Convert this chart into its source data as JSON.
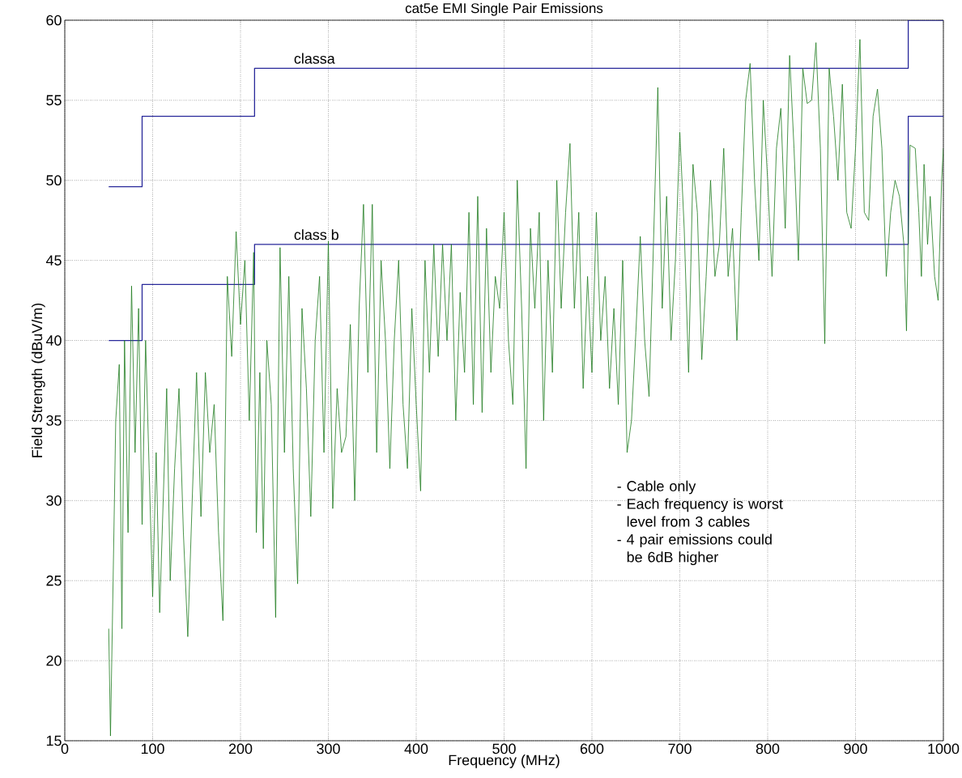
{
  "chart_data": {
    "type": "line",
    "title": "cat5e EMI Single Pair Emissions",
    "xlabel": "Frequency (MHz)",
    "ylabel": "Field Strength (dBuV/m)",
    "xlim": [
      0,
      1000
    ],
    "ylim": [
      15,
      60
    ],
    "xticks": [
      0,
      100,
      200,
      300,
      400,
      500,
      600,
      700,
      800,
      900,
      1000
    ],
    "yticks": [
      15,
      20,
      25,
      30,
      35,
      40,
      45,
      50,
      55,
      60
    ],
    "grid": true,
    "marker": "none",
    "line_style": "solid",
    "annotations": [
      "- Cable only",
      "- Each frequency is worst level from 3 cables",
      "- 4 pair emissions could be 6dB higher"
    ],
    "series": [
      {
        "name": "classa",
        "type": "step",
        "color": "#28289a",
        "x": [
          50,
          88,
          216,
          960,
          1000
        ],
        "values": [
          49.6,
          54,
          57,
          60,
          60
        ]
      },
      {
        "name": "class b",
        "type": "step",
        "color": "#28289a",
        "x": [
          50,
          88,
          216,
          960,
          1000
        ],
        "values": [
          40,
          43.5,
          46,
          54,
          54
        ]
      },
      {
        "color": "#1e7b1e",
        "x": [
          50,
          52,
          55,
          58,
          62,
          65,
          68,
          72,
          76,
          80,
          84,
          88,
          92,
          96,
          100,
          104,
          108,
          112,
          116,
          120,
          125,
          130,
          135,
          140,
          145,
          150,
          155,
          160,
          165,
          170,
          175,
          180,
          185,
          190,
          195,
          200,
          205,
          210,
          215,
          218,
          222,
          226,
          230,
          235,
          240,
          245,
          250,
          255,
          260,
          265,
          270,
          275,
          280,
          285,
          290,
          295,
          300,
          305,
          310,
          315,
          320,
          325,
          330,
          335,
          340,
          345,
          350,
          355,
          360,
          365,
          370,
          375,
          380,
          385,
          390,
          395,
          400,
          405,
          410,
          415,
          420,
          425,
          430,
          435,
          440,
          445,
          450,
          455,
          460,
          465,
          470,
          475,
          480,
          485,
          490,
          495,
          500,
          505,
          510,
          515,
          520,
          525,
          530,
          535,
          540,
          545,
          550,
          555,
          560,
          565,
          570,
          575,
          580,
          585,
          590,
          595,
          600,
          605,
          610,
          615,
          620,
          625,
          630,
          635,
          640,
          645,
          650,
          655,
          660,
          665,
          670,
          675,
          680,
          685,
          690,
          695,
          700,
          705,
          710,
          715,
          720,
          725,
          730,
          735,
          740,
          745,
          750,
          755,
          760,
          765,
          770,
          775,
          780,
          785,
          790,
          795,
          800,
          805,
          810,
          815,
          820,
          825,
          830,
          835,
          840,
          845,
          850,
          855,
          860,
          865,
          870,
          875,
          880,
          885,
          890,
          895,
          900,
          905,
          910,
          915,
          920,
          925,
          930,
          935,
          940,
          945,
          950,
          955,
          958,
          962,
          968,
          972,
          975,
          978,
          982,
          985,
          990,
          994,
          998,
          1000
        ],
        "values": [
          22,
          15.3,
          25,
          35,
          38.5,
          22,
          40,
          28,
          43.4,
          33,
          42,
          28.5,
          40,
          32,
          24,
          33,
          23,
          30,
          37,
          25,
          32,
          37,
          28,
          21.5,
          30,
          38,
          29,
          38,
          33,
          36,
          28,
          22.5,
          44,
          39,
          46.8,
          41,
          45,
          35,
          45.5,
          28,
          38,
          27,
          40,
          36,
          22.7,
          45.8,
          33,
          44,
          32,
          24.8,
          42,
          37,
          29,
          40,
          44,
          33,
          46.2,
          29.5,
          37,
          33,
          34,
          41,
          30,
          42,
          48.5,
          38,
          48.5,
          33,
          45,
          40,
          32,
          40,
          45,
          36,
          32,
          42,
          36,
          30.6,
          45,
          38,
          46,
          39,
          46,
          40,
          46,
          35,
          43,
          38,
          48,
          36,
          49,
          35.5,
          47,
          38,
          44,
          42,
          48,
          40,
          36,
          50,
          42,
          32,
          47,
          42,
          48,
          35,
          45,
          38,
          50,
          42,
          48,
          52.3,
          42,
          48,
          37,
          44,
          38,
          48,
          40,
          44,
          37,
          42,
          36,
          45,
          33,
          35,
          40.5,
          46.5,
          40,
          36.5,
          46,
          55.8,
          42,
          49,
          40,
          45,
          53,
          47,
          38,
          51,
          48,
          38.8,
          44,
          50,
          44,
          46,
          52,
          44,
          47,
          40,
          48,
          55,
          57.3,
          50,
          45,
          55,
          50,
          44,
          52,
          54.5,
          47,
          57.8,
          52,
          45,
          57,
          54.8,
          55,
          58.6,
          52,
          39.8,
          57,
          54,
          50,
          56,
          48,
          47,
          52,
          58.8,
          48,
          47.5,
          54,
          55.7,
          52,
          44,
          48,
          50,
          49,
          46,
          40.6,
          52.2,
          52,
          48,
          44,
          51,
          46,
          49,
          44,
          42.5,
          50,
          52
        ]
      }
    ]
  }
}
